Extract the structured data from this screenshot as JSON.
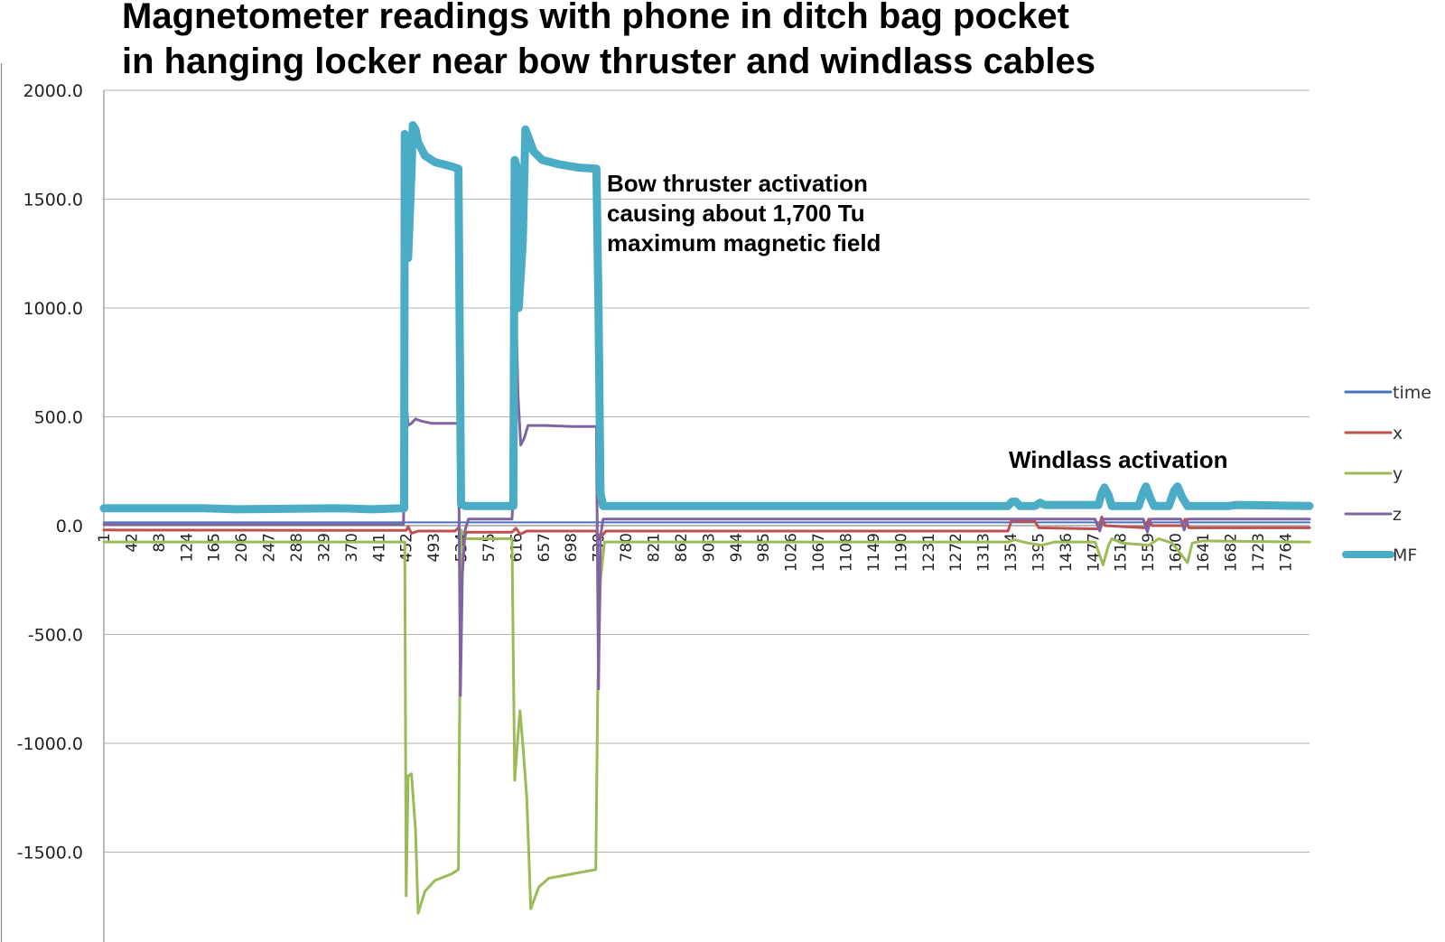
{
  "chart_data": {
    "type": "line",
    "title": [
      "Magnetometer readings with phone in ditch bag pocket",
      "in hanging locker near bow thruster and windlass cables"
    ],
    "xlabel": "",
    "ylabel": "",
    "ylim": [
      -1900,
      2000
    ],
    "xlim": [
      1,
      1800
    ],
    "yticks": [
      2000,
      1500,
      1000,
      500,
      0,
      -500,
      -1000,
      -1500
    ],
    "ytick_labels": [
      "2000.0",
      "1500.0",
      "1000.0",
      "500.0",
      "0.0",
      "-500.0",
      "-1000.0",
      "-1500.0"
    ],
    "xtick_labels": [
      "1",
      "42",
      "83",
      "124",
      "165",
      "206",
      "247",
      "288",
      "329",
      "370",
      "411",
      "452",
      "493",
      "534",
      "575",
      "616",
      "657",
      "698",
      "739",
      "780",
      "821",
      "862",
      "903",
      "944",
      "985",
      "1026",
      "1067",
      "1108",
      "1149",
      "1190",
      "1231",
      "1272",
      "1313",
      "1354",
      "1395",
      "1436",
      "1477",
      "1518",
      "1559",
      "1600",
      "1641",
      "1682",
      "1723",
      "1764"
    ],
    "grid": true,
    "legend_position": "right",
    "annotations": [
      {
        "text": [
          "Bow thruster activation",
          "causing about 1,700 Tu",
          "maximum magnetic field"
        ],
        "near_x": 752,
        "near_y": 1600
      },
      {
        "text": [
          "Windlass activation"
        ],
        "near_x": 1350,
        "near_y": 300
      }
    ],
    "series": [
      {
        "name": "time",
        "color": "#4472c4",
        "width": 2,
        "points": [
          [
            1,
            15
          ],
          [
            1800,
            15
          ]
        ]
      },
      {
        "name": "x",
        "color": "#c0504d",
        "width": 3,
        "points": [
          [
            1,
            -20
          ],
          [
            452,
            -22
          ],
          [
            455,
            -5
          ],
          [
            460,
            -35
          ],
          [
            470,
            -25
          ],
          [
            525,
            -25
          ],
          [
            530,
            -10
          ],
          [
            536,
            -80
          ],
          [
            542,
            -30
          ],
          [
            610,
            -30
          ],
          [
            616,
            -12
          ],
          [
            622,
            -40
          ],
          [
            632,
            -25
          ],
          [
            735,
            -25
          ],
          [
            742,
            -55
          ],
          [
            750,
            -25
          ],
          [
            1350,
            -25
          ],
          [
            1356,
            30
          ],
          [
            1362,
            20
          ],
          [
            1390,
            20
          ],
          [
            1396,
            -10
          ],
          [
            1485,
            -15
          ],
          [
            1490,
            40
          ],
          [
            1495,
            0
          ],
          [
            1555,
            -10
          ],
          [
            1560,
            30
          ],
          [
            1565,
            0
          ],
          [
            1610,
            0
          ],
          [
            1614,
            30
          ],
          [
            1620,
            -10
          ],
          [
            1800,
            -10
          ]
        ]
      },
      {
        "name": "y",
        "color": "#9bbb59",
        "width": 3,
        "points": [
          [
            1,
            -75
          ],
          [
            450,
            -75
          ],
          [
            452,
            -1700
          ],
          [
            455,
            -1150
          ],
          [
            460,
            -1140
          ],
          [
            466,
            -1400
          ],
          [
            470,
            -1780
          ],
          [
            480,
            -1680
          ],
          [
            495,
            -1630
          ],
          [
            520,
            -1600
          ],
          [
            530,
            -1580
          ],
          [
            534,
            -20
          ],
          [
            542,
            -60
          ],
          [
            610,
            -60
          ],
          [
            614,
            -1170
          ],
          [
            618,
            -1000
          ],
          [
            622,
            -850
          ],
          [
            626,
            -1000
          ],
          [
            632,
            -1250
          ],
          [
            638,
            -1760
          ],
          [
            650,
            -1660
          ],
          [
            665,
            -1620
          ],
          [
            700,
            -1600
          ],
          [
            735,
            -1580
          ],
          [
            738,
            -750
          ],
          [
            742,
            -250
          ],
          [
            748,
            -75
          ],
          [
            1350,
            -75
          ],
          [
            1360,
            -65
          ],
          [
            1380,
            -80
          ],
          [
            1400,
            -90
          ],
          [
            1420,
            -75
          ],
          [
            1480,
            -75
          ],
          [
            1492,
            -180
          ],
          [
            1500,
            -90
          ],
          [
            1505,
            -60
          ],
          [
            1520,
            -80
          ],
          [
            1560,
            -90
          ],
          [
            1575,
            -60
          ],
          [
            1595,
            -80
          ],
          [
            1618,
            -170
          ],
          [
            1625,
            -80
          ],
          [
            1640,
            -70
          ],
          [
            1800,
            -75
          ]
        ]
      },
      {
        "name": "z",
        "color": "#8064a2",
        "width": 3,
        "points": [
          [
            1,
            5
          ],
          [
            448,
            5
          ],
          [
            452,
            570
          ],
          [
            455,
            460
          ],
          [
            460,
            470
          ],
          [
            466,
            490
          ],
          [
            475,
            480
          ],
          [
            490,
            470
          ],
          [
            530,
            470
          ],
          [
            533,
            -780
          ],
          [
            536,
            -220
          ],
          [
            540,
            -20
          ],
          [
            545,
            30
          ],
          [
            610,
            30
          ],
          [
            614,
            250
          ],
          [
            616,
            980
          ],
          [
            619,
            600
          ],
          [
            623,
            370
          ],
          [
            628,
            400
          ],
          [
            634,
            460
          ],
          [
            660,
            460
          ],
          [
            700,
            455
          ],
          [
            736,
            455
          ],
          [
            739,
            -750
          ],
          [
            742,
            -50
          ],
          [
            746,
            30
          ],
          [
            1350,
            30
          ],
          [
            1480,
            30
          ],
          [
            1487,
            -25
          ],
          [
            1492,
            30
          ],
          [
            1552,
            30
          ],
          [
            1558,
            -30
          ],
          [
            1563,
            30
          ],
          [
            1608,
            30
          ],
          [
            1613,
            -20
          ],
          [
            1618,
            30
          ],
          [
            1800,
            30
          ]
        ]
      },
      {
        "name": "MF",
        "color": "#4bacc6",
        "width": 9,
        "points": [
          [
            1,
            80
          ],
          [
            150,
            80
          ],
          [
            200,
            75
          ],
          [
            350,
            80
          ],
          [
            400,
            75
          ],
          [
            445,
            80
          ],
          [
            449,
            80
          ],
          [
            450,
            1800
          ],
          [
            452,
            1250
          ],
          [
            455,
            1230
          ],
          [
            460,
            1620
          ],
          [
            462,
            1840
          ],
          [
            466,
            1820
          ],
          [
            470,
            1760
          ],
          [
            480,
            1700
          ],
          [
            495,
            1670
          ],
          [
            520,
            1650
          ],
          [
            530,
            1640
          ],
          [
            534,
            100
          ],
          [
            540,
            90
          ],
          [
            612,
            90
          ],
          [
            614,
            1680
          ],
          [
            617,
            1650
          ],
          [
            620,
            1000
          ],
          [
            626,
            1300
          ],
          [
            630,
            1820
          ],
          [
            635,
            1780
          ],
          [
            642,
            1720
          ],
          [
            655,
            1680
          ],
          [
            680,
            1660
          ],
          [
            710,
            1645
          ],
          [
            736,
            1640
          ],
          [
            739,
            1000
          ],
          [
            742,
            150
          ],
          [
            746,
            90
          ],
          [
            1350,
            90
          ],
          [
            1356,
            110
          ],
          [
            1362,
            110
          ],
          [
            1368,
            90
          ],
          [
            1390,
            90
          ],
          [
            1398,
            105
          ],
          [
            1405,
            95
          ],
          [
            1485,
            95
          ],
          [
            1490,
            150
          ],
          [
            1494,
            175
          ],
          [
            1500,
            140
          ],
          [
            1505,
            90
          ],
          [
            1545,
            90
          ],
          [
            1552,
            155
          ],
          [
            1556,
            180
          ],
          [
            1562,
            130
          ],
          [
            1568,
            90
          ],
          [
            1590,
            90
          ],
          [
            1598,
            160
          ],
          [
            1603,
            180
          ],
          [
            1610,
            130
          ],
          [
            1618,
            90
          ],
          [
            1680,
            90
          ],
          [
            1690,
            95
          ],
          [
            1800,
            90
          ]
        ]
      }
    ]
  }
}
